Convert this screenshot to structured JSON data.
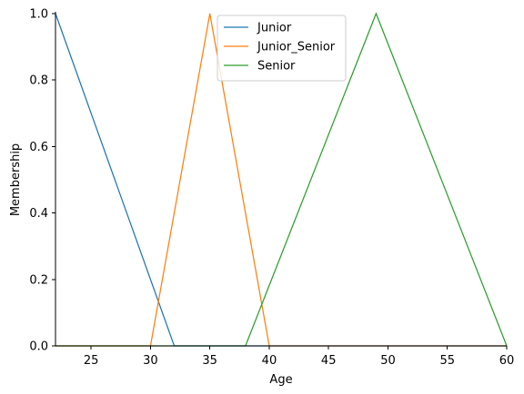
{
  "chart_data": {
    "type": "line",
    "title": "",
    "xlabel": "Age",
    "ylabel": "Membership",
    "xlim": [
      22,
      60
    ],
    "ylim": [
      0,
      1
    ],
    "xticks": [
      25,
      30,
      35,
      40,
      45,
      50,
      55,
      60
    ],
    "yticks": [
      0.0,
      0.2,
      0.4,
      0.6,
      0.8,
      1.0
    ],
    "grid": false,
    "legend_position": "top-center",
    "series": [
      {
        "name": "Junior",
        "color": "#1f77b4",
        "x": [
          22,
          32,
          60
        ],
        "y": [
          1.0,
          0.0,
          0.0
        ]
      },
      {
        "name": "Junior_Senior",
        "color": "#ff7f0e",
        "x": [
          22,
          30,
          35,
          40,
          60
        ],
        "y": [
          0.0,
          0.0,
          1.0,
          0.0,
          0.0
        ]
      },
      {
        "name": "Senior",
        "color": "#2ca02c",
        "x": [
          22,
          38,
          49,
          60
        ],
        "y": [
          0.0,
          0.0,
          1.0,
          0.0
        ]
      }
    ]
  }
}
